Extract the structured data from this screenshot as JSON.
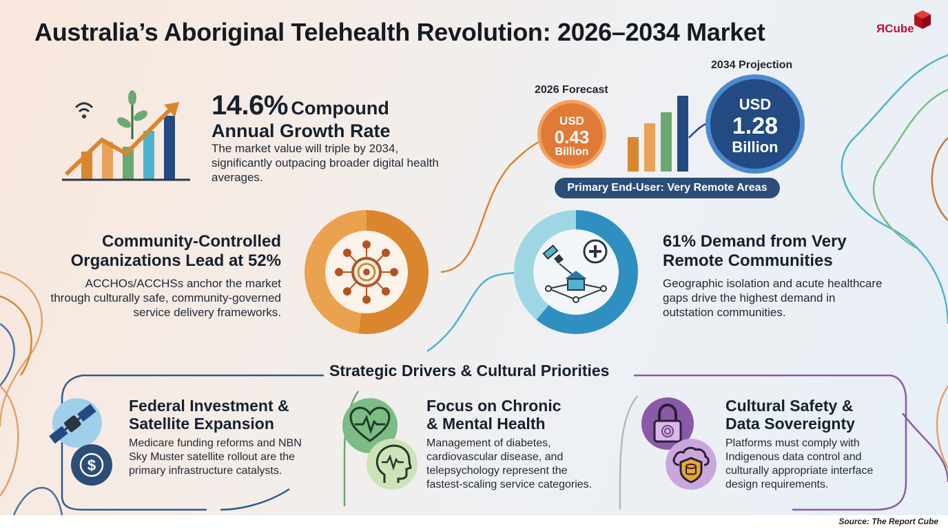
{
  "title": "Australia’s Aboriginal Telehealth Revolution: 2026–2034 Market",
  "logo": {
    "r": "Я",
    "text": "Cube"
  },
  "growth": {
    "rate": "14.6%",
    "label_line1": "Compound",
    "label_line2": "Annual Growth Rate",
    "description": "The market value will triple by 2034, significantly outpacing broader digital health averages."
  },
  "forecast_2026": {
    "label": "2026 Forecast",
    "currency": "USD",
    "value": "0.43",
    "unit": "Billion"
  },
  "projection_2034": {
    "label": "2034 Projection",
    "currency": "USD",
    "value": "1.28",
    "unit": "Billion"
  },
  "end_user_pill": "Primary End-User: Very Remote Areas",
  "community": {
    "title": "Community-Controlled Organizations Lead at 52%",
    "description": "ACCHOs/ACCHSs anchor the market through culturally safe, community-governed service delivery frameworks.",
    "share": 0.52
  },
  "remote": {
    "title": "61% Demand from Very Remote Communities",
    "description": "Geographic isolation and acute healthcare gaps drive the highest demand in outstation communities.",
    "share": 0.61
  },
  "drivers": {
    "heading": "Strategic Drivers & Cultural Priorities",
    "cards": [
      {
        "title_l1": "Federal Investment &",
        "title_l2": "Satellite Expansion",
        "description": "Medicare funding reforms and NBN Sky Muster satellite rollout are the primary infrastructure catalysts."
      },
      {
        "title_l1": "Focus on Chronic",
        "title_l2": "& Mental Health",
        "description": "Management of diabetes, cardiovascular disease, and telepsychology represent the fastest-scaling service categories."
      },
      {
        "title_l1": "Cultural Safety &",
        "title_l2": "Data Sovereignty",
        "description": "Platforms must comply with Indigenous data control and culturally appropriate interface design requirements."
      }
    ]
  },
  "source": "Source: The Report Cube",
  "colors": {
    "orange": "#e07a36",
    "navy": "#234a82",
    "teal": "#4db3cf",
    "purple": "#8a5aa8",
    "green": "#6aa874"
  }
}
